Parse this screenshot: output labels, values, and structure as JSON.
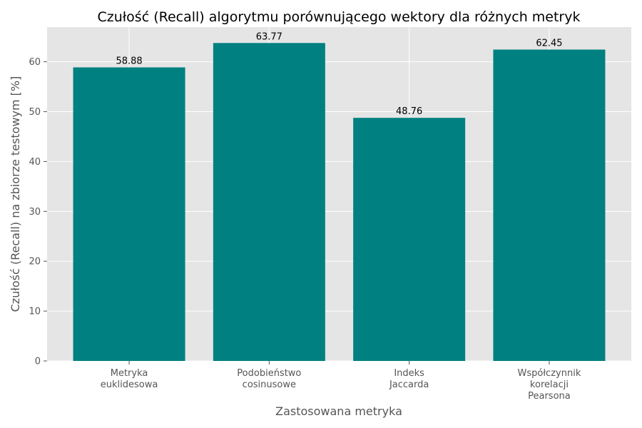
{
  "chart_data": {
    "type": "bar",
    "title": "Czułość (Recall) algorytmu porównującego wektory dla różnych metryk",
    "xlabel": "Zastosowana metryka",
    "ylabel": "Czułość (Recall) na zbiorze testowym [%]",
    "categories": [
      [
        "Metryka",
        "euklidesowa"
      ],
      [
        "Podobieństwo",
        "cosinusowe"
      ],
      [
        "Indeks",
        "Jaccarda"
      ],
      [
        "Współczynnik",
        "korelacji",
        "Pearsona"
      ]
    ],
    "values": [
      58.88,
      63.77,
      48.76,
      62.45
    ],
    "value_labels": [
      "58.88",
      "63.77",
      "48.76",
      "62.45"
    ],
    "ylim": [
      0,
      66.96
    ],
    "yticks": [
      0,
      10,
      20,
      30,
      40,
      50,
      60
    ],
    "grid": true,
    "bar_color": "#008080",
    "plot_background": "#e5e5e5"
  }
}
